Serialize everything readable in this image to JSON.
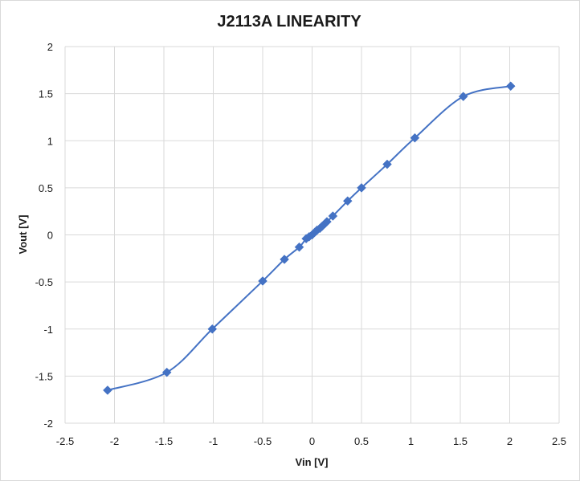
{
  "chart_data": {
    "type": "scatter",
    "title": "J2113A LINEARITY",
    "xlabel": "Vin [V]",
    "ylabel": "Vout [V]",
    "xlim": [
      -2.5,
      2.5
    ],
    "ylim": [
      -2,
      2
    ],
    "x_ticks": [
      "-2.5",
      "-2",
      "-1.5",
      "-1",
      "-0.5",
      "0",
      "0.5",
      "1",
      "1.5",
      "2",
      "2.5"
    ],
    "y_ticks": [
      "-2",
      "-1.5",
      "-1",
      "-0.5",
      "0",
      "0.5",
      "1",
      "1.5",
      "2"
    ],
    "grid": true,
    "legend": "none",
    "line_style": "smoothed line with diamond markers",
    "color": "#4472c4",
    "series": [
      {
        "x": [
          -2.07,
          -1.47,
          -1.01,
          -0.5,
          -0.28,
          -0.13,
          -0.06,
          -0.03,
          0.0,
          0.03,
          0.05,
          0.08,
          0.1,
          0.13,
          0.15,
          0.21,
          0.36,
          0.5,
          0.76,
          1.04,
          1.53,
          2.01
        ],
        "y": [
          -1.65,
          -1.46,
          -1.0,
          -0.49,
          -0.26,
          -0.13,
          -0.04,
          -0.02,
          0.0,
          0.03,
          0.05,
          0.07,
          0.09,
          0.12,
          0.14,
          0.2,
          0.36,
          0.5,
          0.75,
          1.03,
          1.47,
          1.58
        ]
      }
    ]
  }
}
